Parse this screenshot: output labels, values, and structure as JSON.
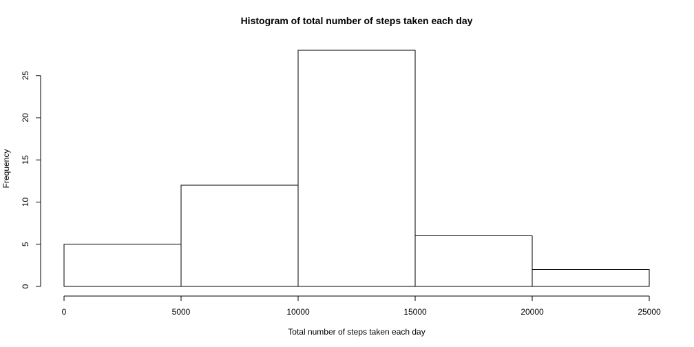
{
  "chart_data": {
    "type": "bar",
    "title": "Histogram of total number of steps taken each day",
    "xlabel": "Total number of steps taken each day",
    "ylabel": "Frequency",
    "bins": [
      {
        "start": 0,
        "end": 5000,
        "count": 5
      },
      {
        "start": 5000,
        "end": 10000,
        "count": 12
      },
      {
        "start": 10000,
        "end": 15000,
        "count": 28
      },
      {
        "start": 15000,
        "end": 20000,
        "count": 6
      },
      {
        "start": 20000,
        "end": 25000,
        "count": 2
      }
    ],
    "xlim": [
      0,
      25000
    ],
    "ylim": [
      0,
      28
    ],
    "x_ticks": [
      0,
      5000,
      10000,
      15000,
      20000,
      25000
    ],
    "x_tick_labels": [
      "0",
      "5000",
      "10000",
      "15000",
      "20000",
      "25000"
    ],
    "y_ticks": [
      0,
      5,
      10,
      15,
      20,
      25
    ],
    "y_tick_labels": [
      "0",
      "5",
      "10",
      "15",
      "20",
      "25"
    ],
    "grid": false,
    "legend": "none"
  }
}
